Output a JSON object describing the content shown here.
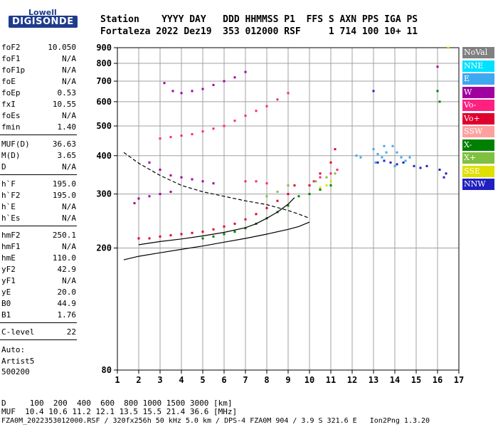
{
  "logo": {
    "top": "Lowell",
    "main": "DIGISONDE"
  },
  "header": {
    "row1": "Station    YYYY DAY   DDD HHMMSS P1  FFS S AXN PPS IGA PS",
    "row2": "Fortaleza 2022 Dez19  353 012000 RSF     1 714 100 10+ 11"
  },
  "params": [
    {
      "label": "foF2",
      "value": "10.050"
    },
    {
      "label": "foF1",
      "value": "N/A"
    },
    {
      "label": "foF1p",
      "value": "N/A"
    },
    {
      "label": "foE",
      "value": "N/A"
    },
    {
      "label": "foEp",
      "value": "0.53"
    },
    {
      "label": "fxI",
      "value": "10.55"
    },
    {
      "label": "foEs",
      "value": "N/A"
    },
    {
      "label": "fmin",
      "value": "1.40"
    },
    {
      "label": "MUF(D)",
      "value": "36.63"
    },
    {
      "label": "M(D)",
      "value": "3.65"
    },
    {
      "label": "D",
      "value": "N/A"
    },
    {
      "label": "h`F",
      "value": "195.0"
    },
    {
      "label": "h`F2",
      "value": "195.0"
    },
    {
      "label": "h`E",
      "value": "N/A"
    },
    {
      "label": "h`Es",
      "value": "N/A"
    },
    {
      "label": "hmF2",
      "value": "250.1"
    },
    {
      "label": "hmF1",
      "value": "N/A"
    },
    {
      "label": "hmE",
      "value": "110.0"
    },
    {
      "label": "yF2",
      "value": "42.9"
    },
    {
      "label": "yF1",
      "value": "N/A"
    },
    {
      "label": "yE",
      "value": "20.0"
    },
    {
      "label": "B0",
      "value": "44.9"
    },
    {
      "label": "B1",
      "value": "1.76"
    },
    {
      "label": "C-level",
      "value": "22"
    }
  ],
  "auto": {
    "line1": "Auto:",
    "line2": "Artist5",
    "line3": "500200"
  },
  "footer": {
    "d_row": "D     100  200  400  600  800 1000 1500 3000 [km]",
    "muf_row": "MUF  10.4 10.6 11.2 12.1 13.5 15.5 21.4 36.6 [MHz]",
    "file_row": "FZA0M_2022353012000.RSF / 320fx256h 50 kHz 5.0 km / DPS-4 FZA0M 904 / 3.9 S 321.6 E   Ion2Png 1.3.20"
  },
  "legend": [
    {
      "label": "NoVal",
      "color": "#808080"
    },
    {
      "label": "NNE",
      "color": "#00e0ff"
    },
    {
      "label": "E",
      "color": "#40a8f0"
    },
    {
      "label": "W",
      "color": "#a000a0"
    },
    {
      "label": "Vo-",
      "color": "#ff2080"
    },
    {
      "label": "Vo+",
      "color": "#e00030"
    },
    {
      "label": "SSW",
      "color": "#ffa0a0"
    },
    {
      "label": "X-",
      "color": "#008000"
    },
    {
      "label": "X+",
      "color": "#80c040"
    },
    {
      "label": "SSE",
      "color": "#e0e000"
    },
    {
      "label": "NNW",
      "color": "#2020c0"
    }
  ],
  "chart_data": {
    "type": "scatter",
    "xlim": [
      1,
      17
    ],
    "ylim": [
      80,
      900
    ],
    "x_scale": "linear",
    "y_scale": "log",
    "x_ticks": [
      1,
      2,
      3,
      4,
      5,
      6,
      7,
      8,
      9,
      10,
      11,
      12,
      13,
      14,
      15,
      16,
      17
    ],
    "y_ticks": [
      80,
      200,
      300,
      400,
      500,
      600,
      700,
      800,
      900
    ],
    "grid": true,
    "legend_position": "right",
    "series": [
      {
        "name": "E",
        "color": "#40a8f0",
        "points": [
          [
            12.2,
            400
          ],
          [
            12.4,
            395
          ],
          [
            13.0,
            420
          ],
          [
            13.2,
            405
          ],
          [
            13.4,
            395
          ],
          [
            13.6,
            410
          ],
          [
            13.9,
            430
          ],
          [
            14.1,
            410
          ],
          [
            14.3,
            395
          ],
          [
            14.5,
            385
          ],
          [
            14.7,
            395
          ],
          [
            13.1,
            380
          ],
          [
            13.5,
            430
          ],
          [
            14.0,
            370
          ]
        ]
      },
      {
        "name": "W",
        "color": "#a000a0",
        "points": [
          [
            2.5,
            380
          ],
          [
            3.0,
            360
          ],
          [
            3.5,
            345
          ],
          [
            4.0,
            340
          ],
          [
            4.5,
            335
          ],
          [
            5.0,
            330
          ],
          [
            5.5,
            325
          ],
          [
            3.2,
            690
          ],
          [
            3.6,
            650
          ],
          [
            4.0,
            640
          ],
          [
            4.5,
            650
          ],
          [
            5.0,
            660
          ],
          [
            5.5,
            680
          ],
          [
            6.0,
            700
          ],
          [
            6.5,
            720
          ],
          [
            7.0,
            750
          ],
          [
            2.0,
            290
          ],
          [
            2.5,
            295
          ],
          [
            3.0,
            300
          ],
          [
            3.5,
            305
          ],
          [
            1.8,
            280
          ],
          [
            16.0,
            780
          ]
        ]
      },
      {
        "name": "Vo-",
        "color": "#ff2080",
        "points": [
          [
            3.0,
            455
          ],
          [
            3.5,
            460
          ],
          [
            4.0,
            465
          ],
          [
            4.5,
            470
          ],
          [
            5.0,
            480
          ],
          [
            5.5,
            490
          ],
          [
            6.0,
            500
          ],
          [
            6.5,
            520
          ],
          [
            7.0,
            540
          ],
          [
            7.5,
            560
          ],
          [
            8.0,
            580
          ],
          [
            8.5,
            610
          ],
          [
            9.0,
            640
          ],
          [
            7.0,
            330
          ],
          [
            7.5,
            330
          ],
          [
            8.0,
            325
          ],
          [
            10.2,
            330
          ],
          [
            10.5,
            340
          ],
          [
            11.0,
            350
          ],
          [
            11.3,
            360
          ]
        ]
      },
      {
        "name": "Vo+",
        "color": "#e00030",
        "points": [
          [
            2.0,
            215
          ],
          [
            2.5,
            215
          ],
          [
            3.0,
            218
          ],
          [
            3.5,
            220
          ],
          [
            4.0,
            222
          ],
          [
            4.5,
            224
          ],
          [
            5.0,
            226
          ],
          [
            5.5,
            230
          ],
          [
            6.0,
            235
          ],
          [
            6.5,
            240
          ],
          [
            7.0,
            248
          ],
          [
            7.5,
            258
          ],
          [
            8.0,
            270
          ],
          [
            8.5,
            285
          ],
          [
            9.0,
            300
          ],
          [
            9.3,
            320
          ],
          [
            10.0,
            320
          ],
          [
            10.5,
            350
          ],
          [
            11.0,
            380
          ],
          [
            11.2,
            420
          ]
        ]
      },
      {
        "name": "X-",
        "color": "#008000",
        "points": [
          [
            5.0,
            215
          ],
          [
            5.5,
            218
          ],
          [
            6.0,
            222
          ],
          [
            6.5,
            226
          ],
          [
            7.0,
            232
          ],
          [
            7.5,
            240
          ],
          [
            8.0,
            250
          ],
          [
            8.5,
            262
          ],
          [
            9.0,
            275
          ],
          [
            9.5,
            295
          ],
          [
            10.0,
            300
          ],
          [
            10.5,
            310
          ],
          [
            11.0,
            320
          ],
          [
            16.0,
            650
          ],
          [
            16.1,
            600
          ]
        ]
      },
      {
        "name": "X+",
        "color": "#80c040",
        "points": [
          [
            8.0,
            295
          ],
          [
            8.5,
            305
          ],
          [
            9.0,
            320
          ],
          [
            10.3,
            330
          ],
          [
            10.8,
            340
          ],
          [
            11.2,
            350
          ]
        ]
      },
      {
        "name": "SSE",
        "color": "#e0e000",
        "points": [
          [
            10.5,
            315
          ],
          [
            10.8,
            320
          ],
          [
            11.0,
            330
          ],
          [
            16.5,
            900
          ]
        ]
      },
      {
        "name": "NNW",
        "color": "#2020c0",
        "points": [
          [
            13.2,
            380
          ],
          [
            13.5,
            385
          ],
          [
            13.8,
            380
          ],
          [
            14.1,
            375
          ],
          [
            14.4,
            380
          ],
          [
            14.9,
            370
          ],
          [
            15.2,
            365
          ],
          [
            15.5,
            370
          ],
          [
            16.1,
            360
          ],
          [
            16.3,
            340
          ],
          [
            16.4,
            350
          ],
          [
            13.0,
            650
          ]
        ]
      }
    ],
    "profile_solid": [
      [
        1.3,
        183
      ],
      [
        2.0,
        188
      ],
      [
        3.0,
        193
      ],
      [
        4.0,
        198
      ],
      [
        5.0,
        203
      ],
      [
        6.0,
        209
      ],
      [
        7.0,
        215
      ],
      [
        8.0,
        222
      ],
      [
        9.0,
        230
      ],
      [
        9.5,
        235
      ],
      [
        10.0,
        243
      ]
    ],
    "profile_solid_upper": [
      [
        2.0,
        205
      ],
      [
        3.0,
        210
      ],
      [
        4.0,
        214
      ],
      [
        5.0,
        219
      ],
      [
        6.0,
        225
      ],
      [
        7.0,
        233
      ],
      [
        7.5,
        240
      ],
      [
        8.0,
        250
      ],
      [
        8.5,
        262
      ],
      [
        9.0,
        278
      ],
      [
        9.3,
        292
      ]
    ],
    "profile_dashed": [
      [
        1.3,
        410
      ],
      [
        2.0,
        378
      ],
      [
        3.0,
        345
      ],
      [
        4.0,
        320
      ],
      [
        5.0,
        305
      ],
      [
        6.0,
        295
      ],
      [
        7.0,
        285
      ],
      [
        8.0,
        277
      ],
      [
        9.0,
        265
      ],
      [
        9.5,
        258
      ],
      [
        10.0,
        250
      ]
    ]
  }
}
